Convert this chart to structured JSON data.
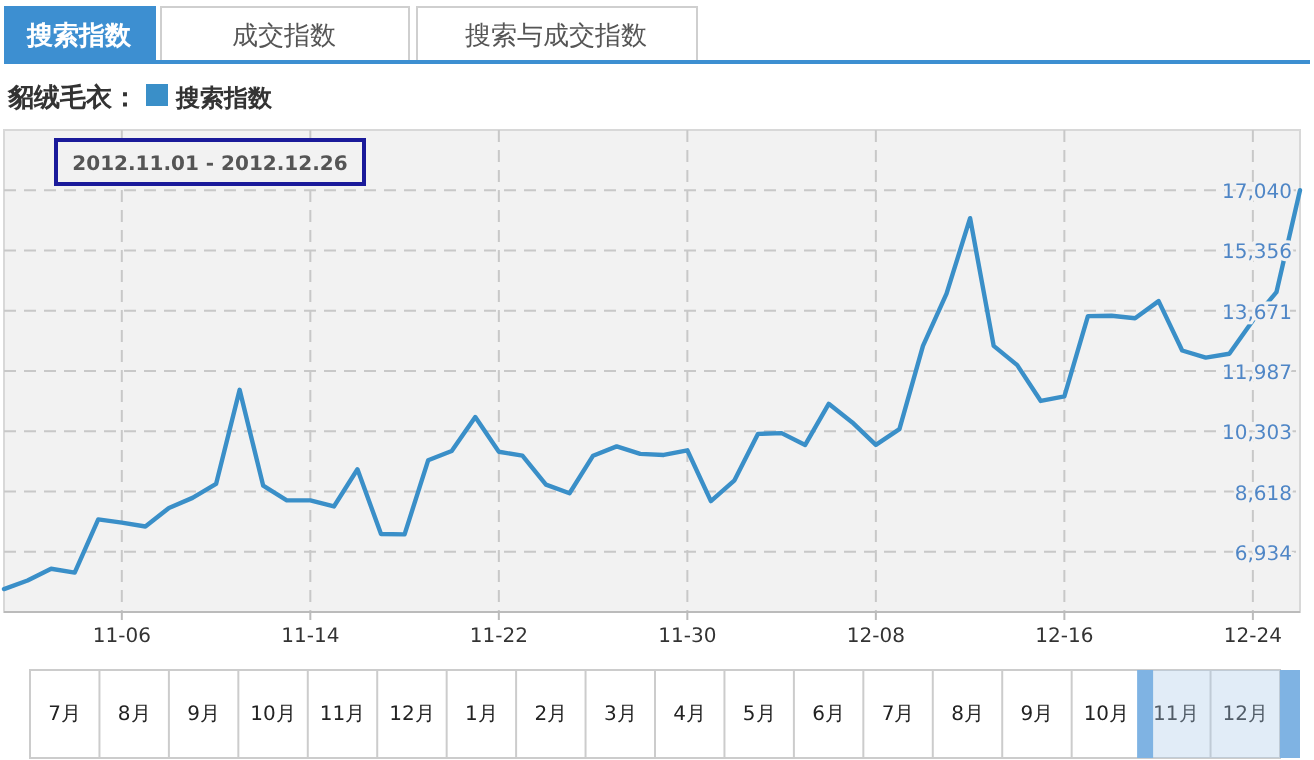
{
  "chart_data": {
    "type": "line",
    "legend_title": "貂绒毛衣：",
    "legend": "top left",
    "grid": true,
    "marker": "none",
    "line_style": "solid",
    "annotations": [
      "搜索指数",
      "成交指数",
      "搜索与成交指数",
      "2012.11.01 - 2012.12.26",
      "7月",
      "8月",
      "9月",
      "10月",
      "11月",
      "12月",
      "1月",
      "2月",
      "3月",
      "4月",
      "5月",
      "6月",
      "7月",
      "8月",
      "9月",
      "10月",
      "11月",
      "12月"
    ],
    "x": [
      "2012-11-01",
      "2012-11-02",
      "2012-11-03",
      "2012-11-04",
      "2012-11-05",
      "2012-11-06",
      "2012-11-07",
      "2012-11-08",
      "2012-11-09",
      "2012-11-10",
      "2012-11-11",
      "2012-11-12",
      "2012-11-13",
      "2012-11-14",
      "2012-11-15",
      "2012-11-16",
      "2012-11-17",
      "2012-11-18",
      "2012-11-19",
      "2012-11-20",
      "2012-11-21",
      "2012-11-22",
      "2012-11-23",
      "2012-11-24",
      "2012-11-25",
      "2012-11-26",
      "2012-11-27",
      "2012-11-28",
      "2012-11-29",
      "2012-11-30",
      "2012-12-01",
      "2012-12-02",
      "2012-12-03",
      "2012-12-04",
      "2012-12-05",
      "2012-12-06",
      "2012-12-07",
      "2012-12-08",
      "2012-12-09",
      "2012-12-10",
      "2012-12-11",
      "2012-12-12",
      "2012-12-13",
      "2012-12-14",
      "2012-12-15",
      "2012-12-16",
      "2012-12-17",
      "2012-12-18",
      "2012-12-19",
      "2012-12-20",
      "2012-12-21",
      "2012-12-22",
      "2012-12-23",
      "2012-12-24",
      "2012-12-25",
      "2012-12-26"
    ],
    "series": [
      {
        "name": "搜索指数",
        "color": "#3a8fc8",
        "values": [
          5890,
          6130,
          6460,
          6350,
          7840,
          7750,
          7640,
          8160,
          8440,
          8830,
          11460,
          8780,
          8370,
          8370,
          8200,
          9240,
          7430,
          7420,
          9490,
          9750,
          10700,
          9730,
          9620,
          8810,
          8570,
          9620,
          9880,
          9670,
          9640,
          9770,
          8350,
          8930,
          10230,
          10250,
          9920,
          11070,
          10550,
          9920,
          10360,
          12690,
          14150,
          16260,
          12690,
          12150,
          11150,
          11280,
          13520,
          13530,
          13460,
          13940,
          12560,
          12360,
          12470,
          13400,
          14190,
          17040
        ]
      }
    ],
    "xlim": [
      "2012-11-01",
      "2012-12-26"
    ],
    "xticks": [
      {
        "value": "2012-11-06",
        "label": "11-06"
      },
      {
        "value": "2012-11-14",
        "label": "11-14"
      },
      {
        "value": "2012-11-22",
        "label": "11-22"
      },
      {
        "value": "2012-11-30",
        "label": "11-30"
      },
      {
        "value": "2012-12-08",
        "label": "12-08"
      },
      {
        "value": "2012-12-16",
        "label": "12-16"
      },
      {
        "value": "2012-12-24",
        "label": "12-24"
      }
    ],
    "ylim": [
      5250,
      18724
    ],
    "yticks": [
      {
        "value": 6934,
        "label": "6,934"
      },
      {
        "value": 8618,
        "label": "8,618"
      },
      {
        "value": 10303,
        "label": "10,303"
      },
      {
        "value": 11987,
        "label": "11,987"
      },
      {
        "value": 13671,
        "label": "13,671"
      },
      {
        "value": 15356,
        "label": "15,356"
      },
      {
        "value": 17040,
        "label": "17,040"
      }
    ]
  }
}
